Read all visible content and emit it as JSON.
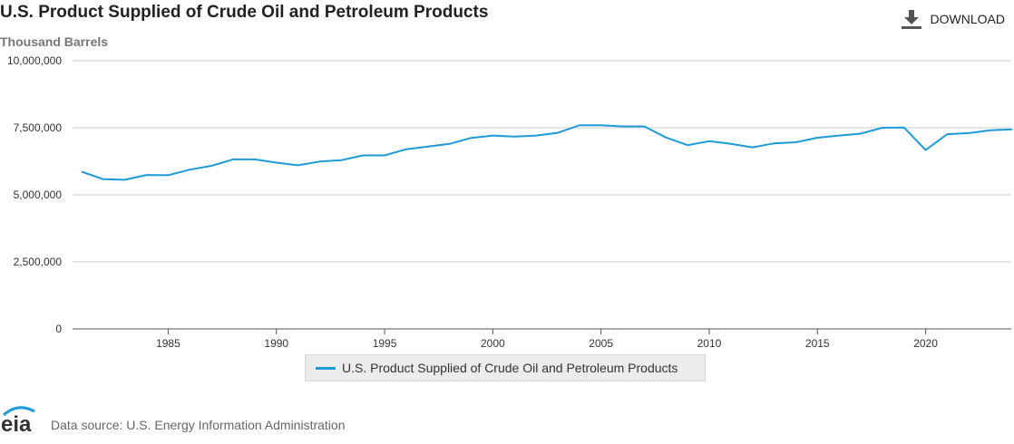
{
  "header": {
    "title": "U.S. Product Supplied of Crude Oil and Petroleum Products",
    "download_label": "DOWNLOAD"
  },
  "footer": {
    "logo_text": "eia",
    "source": "Data source: U.S. Energy Information Administration"
  },
  "colors": {
    "line": "#1e9bd7",
    "grid": "#cccccc",
    "axis": "#555555"
  },
  "chart_data": {
    "type": "line",
    "title": "U.S. Product Supplied of Crude Oil and Petroleum Products",
    "ylabel": "Thousand Barrels",
    "xlabel": "",
    "xlim": [
      1981,
      2024
    ],
    "ylim": [
      0,
      10000000
    ],
    "yticks": [
      0,
      2500000,
      5000000,
      7500000,
      10000000
    ],
    "ytick_labels": [
      "0",
      "2,500,000",
      "5,000,000",
      "7,500,000",
      "10,000,000"
    ],
    "xticks": [
      1985,
      1990,
      1995,
      2000,
      2005,
      2010,
      2015,
      2020
    ],
    "grid": true,
    "legend": "bottom-center",
    "series": [
      {
        "name": "U.S. Product Supplied of Crude Oil and Petroleum Products",
        "x": [
          1981,
          1982,
          1983,
          1984,
          1985,
          1986,
          1987,
          1988,
          1989,
          1990,
          1991,
          1992,
          1993,
          1994,
          1995,
          1996,
          1997,
          1998,
          1999,
          2000,
          2001,
          2002,
          2003,
          2004,
          2005,
          2006,
          2007,
          2008,
          2009,
          2010,
          2011,
          2012,
          2013,
          2014,
          2015,
          2016,
          2017,
          2018,
          2019,
          2020,
          2021,
          2022,
          2023,
          2024
        ],
        "values": [
          5860000,
          5580000,
          5560000,
          5740000,
          5730000,
          5940000,
          6080000,
          6320000,
          6320000,
          6200000,
          6100000,
          6240000,
          6290000,
          6470000,
          6470000,
          6700000,
          6800000,
          6900000,
          7120000,
          7210000,
          7170000,
          7210000,
          7310000,
          7590000,
          7590000,
          7550000,
          7550000,
          7140000,
          6850000,
          7000000,
          6900000,
          6770000,
          6920000,
          6960000,
          7130000,
          7210000,
          7280000,
          7500000,
          7510000,
          6670000,
          7260000,
          7300000,
          7410000,
          7440000
        ]
      }
    ]
  }
}
